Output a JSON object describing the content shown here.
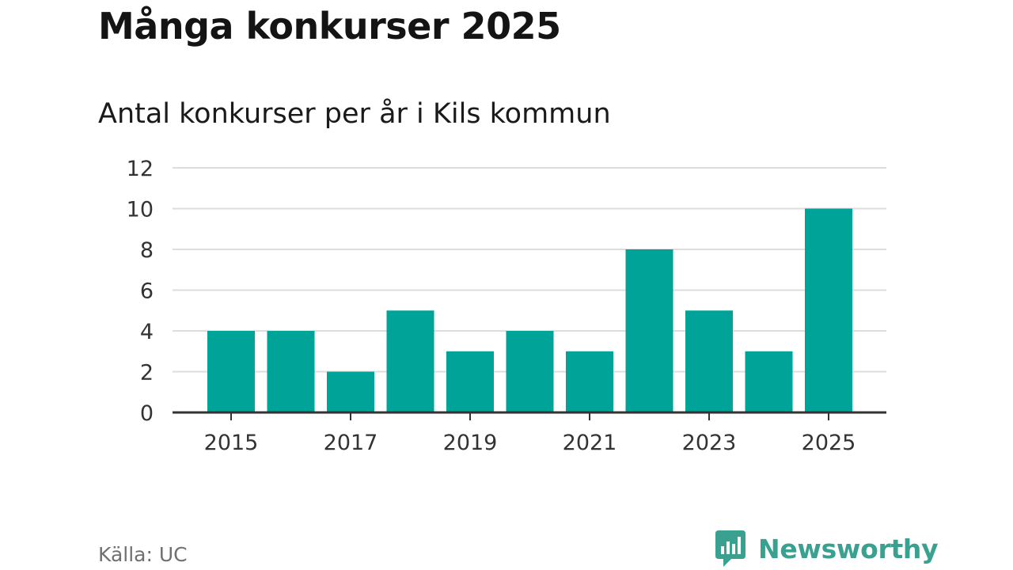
{
  "header": {
    "title": "Många konkurser 2025",
    "subtitle": "Antal konkurser per år i Kils kommun"
  },
  "footer": {
    "source": "Källa: UC",
    "brand": "Newsworthy"
  },
  "colors": {
    "bar": "#00a398",
    "grid": "#dddddd",
    "axis": "#333333",
    "brand": "#3aa08f"
  },
  "chart_data": {
    "type": "bar",
    "title": "Många konkurser 2025",
    "subtitle": "Antal konkurser per år i Kils kommun",
    "xlabel": "",
    "ylabel": "",
    "categories": [
      "2015",
      "2016",
      "2017",
      "2018",
      "2019",
      "2020",
      "2021",
      "2022",
      "2023",
      "2024",
      "2025"
    ],
    "values": [
      4,
      4,
      2,
      5,
      3,
      4,
      3,
      8,
      5,
      3,
      10
    ],
    "x_tick_labels": [
      "2015",
      "2017",
      "2019",
      "2021",
      "2023",
      "2025"
    ],
    "y_ticks": [
      0,
      2,
      4,
      6,
      8,
      10,
      12
    ],
    "ylim": [
      0,
      12
    ],
    "grid": true
  }
}
